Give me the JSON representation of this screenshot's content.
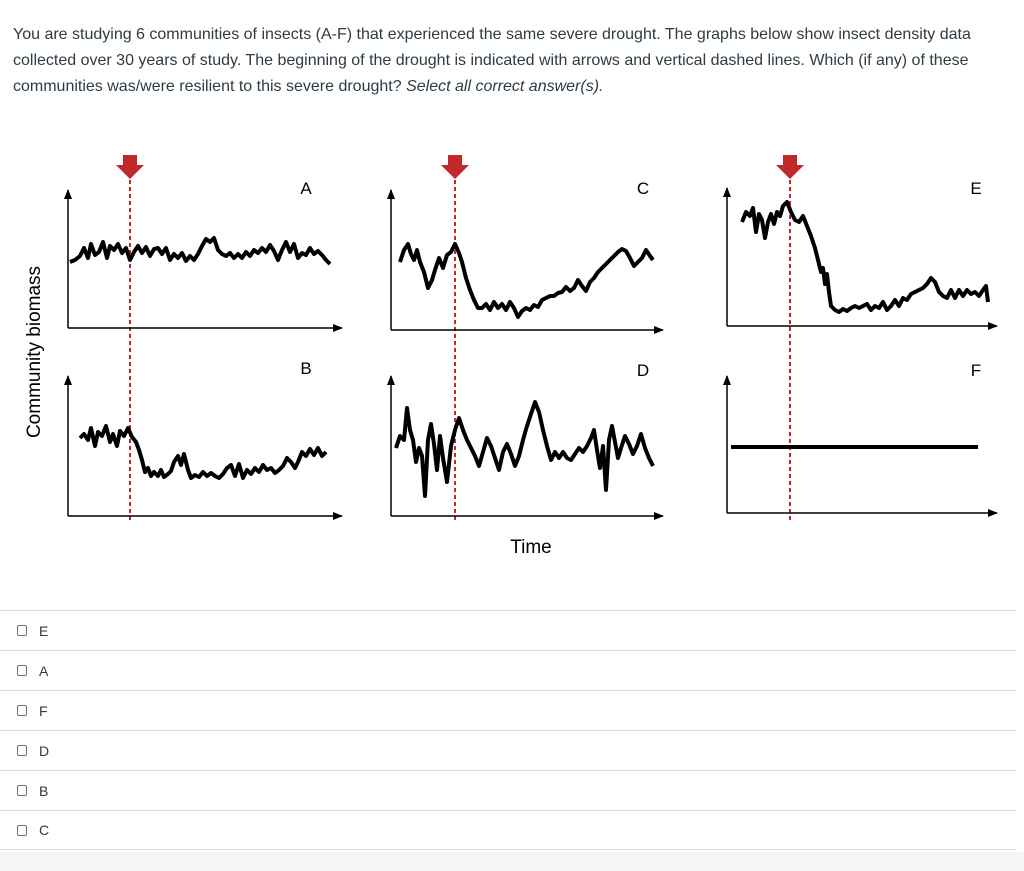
{
  "question": {
    "text": "You are studying 6 communities of insects (A-F) that experienced the same severe drought. The graphs below show insect density data collected over 30 years of study. The beginning of the drought is indicated with arrows and vertical dashed lines. Which (if any) of these communities was/were resilient to this severe drought?",
    "instruction": "Select all correct answer(s)."
  },
  "figure": {
    "ylabel": "Community biomass",
    "xlabel": "Time",
    "drought_color": "#c0282b",
    "panels": [
      {
        "label": "A"
      },
      {
        "label": "C"
      },
      {
        "label": "E"
      },
      {
        "label": "B"
      },
      {
        "label": "D"
      },
      {
        "label": "F"
      }
    ]
  },
  "answers": [
    {
      "label": "E",
      "checked": false
    },
    {
      "label": "A",
      "checked": false
    },
    {
      "label": "F",
      "checked": false
    },
    {
      "label": "D",
      "checked": false
    },
    {
      "label": "B",
      "checked": false
    },
    {
      "label": "C",
      "checked": false
    }
  ]
}
